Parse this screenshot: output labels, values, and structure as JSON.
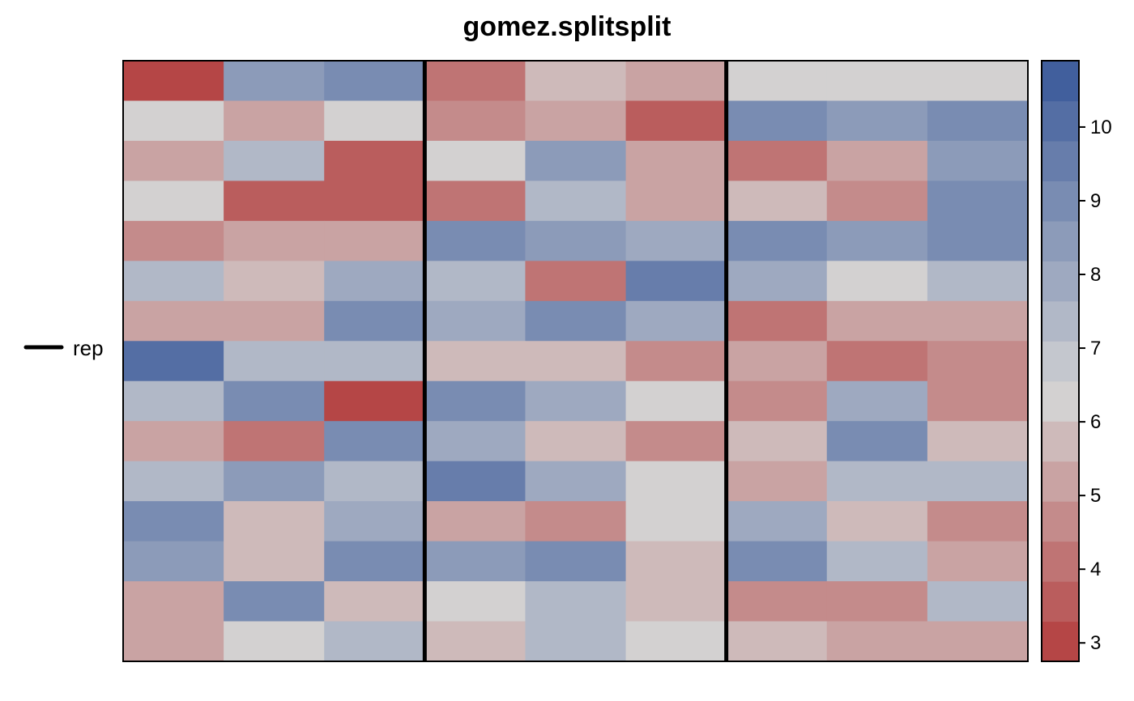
{
  "chart_data": {
    "type": "heatmap",
    "title": "gomez.splitsplit",
    "legend_label": "rep",
    "n_rows": 15,
    "n_cols": 9,
    "block_separators_after_col": [
      3,
      6
    ],
    "color_scale": {
      "range": [
        2.75,
        10.9
      ],
      "low_color": "#B23A3A",
      "mid_color": "#D4D4D4",
      "high_color": "#38589A",
      "mid_value": 6.35,
      "bins": 15
    },
    "colorbar_ticks": [
      "3",
      "4",
      "5",
      "6",
      "7",
      "8",
      "9",
      "10"
    ],
    "colorbar_tick_values": [
      3,
      4,
      5,
      6,
      7,
      8,
      9,
      10
    ],
    "values": [
      [
        3.0,
        8.2,
        8.8,
        4.2,
        5.8,
        5.2,
        6.3,
        6.3,
        6.3
      ],
      [
        6.3,
        5.2,
        6.3,
        4.7,
        5.2,
        3.5,
        8.8,
        8.2,
        9.2
      ],
      [
        5.2,
        7.2,
        3.5,
        6.3,
        8.2,
        5.2,
        4.2,
        5.2,
        8.2
      ],
      [
        6.3,
        3.5,
        3.5,
        4.2,
        7.2,
        5.2,
        5.8,
        4.7,
        9.2
      ],
      [
        4.7,
        5.2,
        5.2,
        9.2,
        8.2,
        7.8,
        9.2,
        8.2,
        8.8
      ],
      [
        7.2,
        5.8,
        7.8,
        7.2,
        4.2,
        9.8,
        7.8,
        6.3,
        7.2
      ],
      [
        5.2,
        5.2,
        9.2,
        7.8,
        8.8,
        7.8,
        4.2,
        5.2,
        5.2
      ],
      [
        10.2,
        7.2,
        7.2,
        5.8,
        5.8,
        4.7,
        5.2,
        4.2,
        4.7
      ],
      [
        7.2,
        9.2,
        3.0,
        8.8,
        7.8,
        6.3,
        4.7,
        7.8,
        4.7
      ],
      [
        5.2,
        4.2,
        9.2,
        7.8,
        5.8,
        4.7,
        5.8,
        8.8,
        5.8
      ],
      [
        7.2,
        8.2,
        7.2,
        9.8,
        7.8,
        6.3,
        5.2,
        7.2,
        7.2
      ],
      [
        8.8,
        5.8,
        7.8,
        5.2,
        4.7,
        6.3,
        7.8,
        5.8,
        4.7
      ],
      [
        8.2,
        5.8,
        8.8,
        8.2,
        8.8,
        5.8,
        8.8,
        7.2,
        5.2
      ],
      [
        5.2,
        8.8,
        5.8,
        6.3,
        7.2,
        5.8,
        4.7,
        4.7,
        7.2
      ],
      [
        5.2,
        6.3,
        7.2,
        5.8,
        7.2,
        6.3,
        5.8,
        5.2,
        5.2
      ]
    ]
  }
}
